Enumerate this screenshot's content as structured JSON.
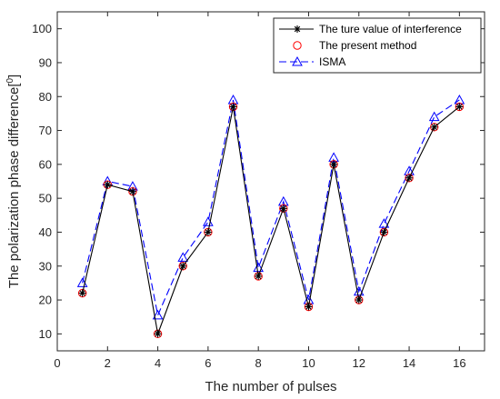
{
  "chart_data": {
    "type": "line",
    "xlabel": "The number of pulses",
    "ylabel": "The polarization phase difference[",
    "ylabel_sup": "0",
    "ylabel_tail": "]",
    "xlim": [
      0,
      17
    ],
    "ylim": [
      5,
      105
    ],
    "xticks": [
      0,
      2,
      4,
      6,
      8,
      10,
      12,
      14,
      16
    ],
    "yticks": [
      10,
      20,
      30,
      40,
      50,
      60,
      70,
      80,
      90,
      100
    ],
    "grid": false,
    "legend_position": "top-right",
    "x": [
      1,
      2,
      3,
      4,
      5,
      6,
      7,
      8,
      9,
      10,
      11,
      12,
      13,
      14,
      15,
      16
    ],
    "series": [
      {
        "name": "The ture value of interference",
        "color": "#000000",
        "marker": "asterisk",
        "line": "solid",
        "values": [
          22,
          54,
          52,
          10,
          30,
          40,
          77,
          27,
          47,
          18,
          60,
          20,
          40,
          56,
          71,
          77
        ]
      },
      {
        "name": "The present method",
        "color": "#ff0000",
        "marker": "circle",
        "line": "none",
        "values": [
          22,
          54,
          52,
          10,
          30,
          40,
          77,
          27,
          47,
          18,
          60,
          20,
          40,
          56,
          71,
          77
        ]
      },
      {
        "name": "ISMA",
        "color": "#0000ff",
        "marker": "triangle",
        "line": "dashed",
        "values": [
          25,
          55,
          53.5,
          15.5,
          32.5,
          43,
          79,
          29.5,
          49,
          20,
          62,
          22.5,
          42.5,
          58,
          74,
          79
        ]
      }
    ]
  }
}
